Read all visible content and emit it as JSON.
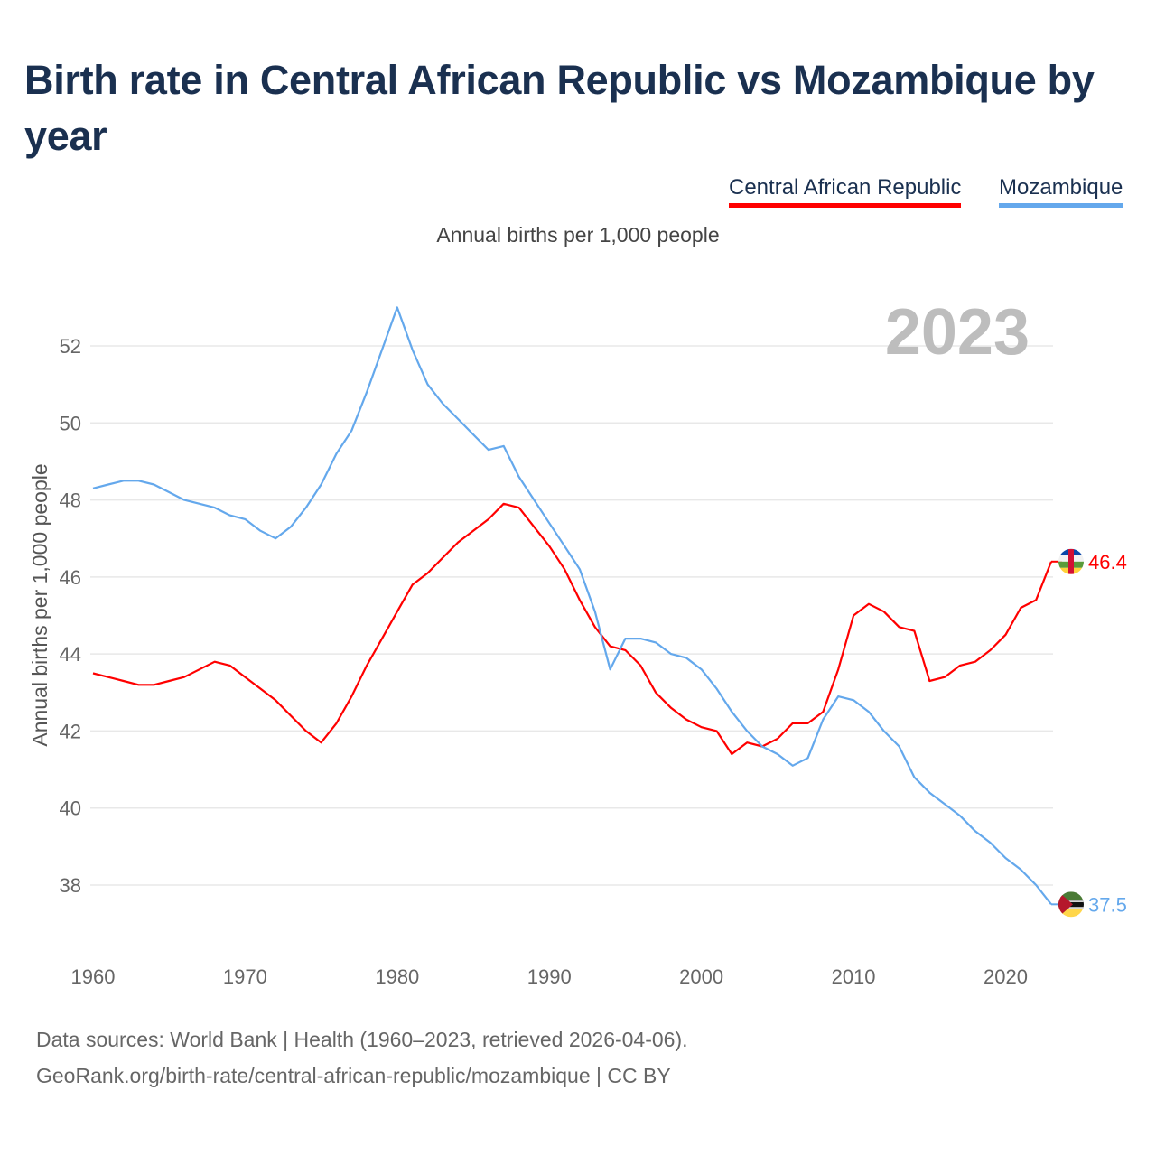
{
  "title": "Birth rate in Central African Republic vs Mozambique by year",
  "subtitle": "Annual births per 1,000 people",
  "footer": {
    "line1": "Data sources: World Bank | Health (1960–2023, retrieved 2026-04-06).",
    "line2": "GeoRank.org/birth-rate/central-african-republic/mozambique | CC BY"
  },
  "chart_data": {
    "type": "line",
    "title": "Birth rate in Central African Republic vs Mozambique by year",
    "ylabel": "Annual births per 1,000 people",
    "xlabel": "",
    "year_watermark": "2023",
    "xlim": [
      1960,
      2023
    ],
    "ylim": [
      36.8,
      53.3
    ],
    "xticks": [
      1960,
      1970,
      1980,
      1990,
      2000,
      2010,
      2020
    ],
    "yticks": [
      38,
      40,
      42,
      44,
      46,
      48,
      50,
      52
    ],
    "grid": true,
    "legend_position": "top-right",
    "x_start": 1960,
    "series": [
      {
        "name": "Central African Republic",
        "color": "#ff0000",
        "end_label": "46.4",
        "flag": "central-african-republic-flag",
        "values": [
          43.5,
          43.4,
          43.3,
          43.2,
          43.2,
          43.3,
          43.4,
          43.6,
          43.8,
          43.7,
          43.4,
          43.1,
          42.8,
          42.4,
          42.0,
          41.7,
          42.2,
          42.9,
          43.7,
          44.4,
          45.1,
          45.8,
          46.1,
          46.5,
          46.9,
          47.2,
          47.5,
          47.9,
          47.8,
          47.3,
          46.8,
          46.2,
          45.4,
          44.7,
          44.2,
          44.1,
          43.7,
          43.0,
          42.6,
          42.3,
          42.1,
          42.0,
          41.4,
          41.7,
          41.6,
          41.8,
          42.2,
          42.2,
          42.5,
          43.6,
          45.0,
          45.3,
          45.1,
          44.7,
          44.6,
          43.3,
          43.4,
          43.7,
          43.8,
          44.1,
          44.5,
          45.2,
          45.4,
          46.4
        ]
      },
      {
        "name": "Mozambique",
        "color": "#64a8ec",
        "end_label": "37.5",
        "flag": "mozambique-flag",
        "values": [
          48.3,
          48.4,
          48.5,
          48.5,
          48.4,
          48.2,
          48.0,
          47.9,
          47.8,
          47.6,
          47.5,
          47.2,
          47.0,
          47.3,
          47.8,
          48.4,
          49.2,
          49.8,
          50.8,
          51.9,
          53.0,
          51.9,
          51.0,
          50.5,
          50.1,
          49.7,
          49.3,
          49.4,
          48.6,
          48.0,
          47.4,
          46.8,
          46.2,
          45.1,
          43.6,
          44.4,
          44.4,
          44.3,
          44.0,
          43.9,
          43.6,
          43.1,
          42.5,
          42.0,
          41.6,
          41.4,
          41.1,
          41.3,
          42.3,
          42.9,
          42.8,
          42.5,
          42.0,
          41.6,
          40.8,
          40.4,
          40.1,
          39.8,
          39.4,
          39.1,
          38.7,
          38.4,
          38.0,
          37.5
        ]
      }
    ]
  }
}
